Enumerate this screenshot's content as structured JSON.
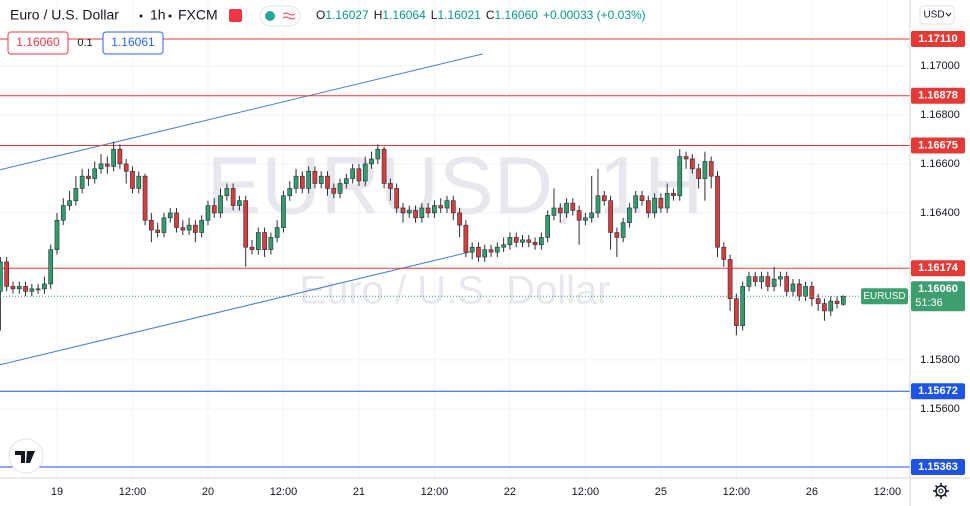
{
  "header": {
    "symbol": "Euro / U.S. Dollar",
    "interval": "1h",
    "exchange": "FXCM",
    "ohlc": [
      {
        "k": "O",
        "v": "1.16027"
      },
      {
        "k": "H",
        "v": "1.16064"
      },
      {
        "k": "L",
        "v": "1.16021"
      },
      {
        "k": "C",
        "v": "1.16060"
      }
    ],
    "change": "+0.00033 (+0.03%)",
    "sell": "1.16060",
    "spread": "0.1",
    "buy": "1.16061",
    "currency": "USD"
  },
  "chart_data": {
    "type": "candlestick",
    "watermark": "EURUSD, 1H",
    "watermark_sub": "Euro / U.S. Dollar",
    "up_color": "#2f9e6c",
    "down_color": "#d83c3c",
    "grid": true,
    "open": [
      1.1608,
      1.162,
      1.161,
      1.1609,
      1.161,
      1.1608,
      1.1609,
      1.1609,
      1.1611,
      1.1625,
      1.1637,
      1.1643,
      1.1645,
      1.165,
      1.1655,
      1.1654,
      1.1658,
      1.166,
      1.1659,
      1.1666,
      1.166,
      1.1657,
      1.165,
      1.1655,
      1.1637,
      1.1633,
      1.1632,
      1.1638,
      1.164,
      1.1634,
      1.1633,
      1.1635,
      1.1632,
      1.1637,
      1.1643,
      1.164,
      1.1647,
      1.165,
      1.1643,
      1.1645,
      1.1626,
      1.1625,
      1.1632,
      1.1625,
      1.163,
      1.1634,
      1.1647,
      1.165,
      1.1655,
      1.165,
      1.1657,
      1.1652,
      1.1655,
      1.165,
      1.1648,
      1.1652,
      1.1654,
      1.1658,
      1.1653,
      1.166,
      1.1662,
      1.1666,
      1.1652,
      1.165,
      1.1642,
      1.164,
      1.1641,
      1.1638,
      1.1642,
      1.164,
      1.1643,
      1.1642,
      1.1645,
      1.164,
      1.1635,
      1.1624,
      1.1626,
      1.1622,
      1.1625,
      1.1624,
      1.1626,
      1.1627,
      1.163,
      1.1628,
      1.1629,
      1.1628,
      1.1627,
      1.163,
      1.1639,
      1.1642,
      1.164,
      1.1644,
      1.1641,
      1.1637,
      1.1638,
      1.164,
      1.1647,
      1.1645,
      1.1632,
      1.163,
      1.1636,
      1.1642,
      1.1647,
      1.1645,
      1.164,
      1.1646,
      1.1642,
      1.1648,
      1.1647,
      1.1663,
      1.1662,
      1.1658,
      1.1654,
      1.1661,
      1.1655,
      1.1626,
      1.1621,
      1.1605,
      1.1594,
      1.161,
      1.1614,
      1.1612,
      1.1614,
      1.161,
      1.1613,
      1.1614,
      1.1608,
      1.1611,
      1.1606,
      1.161,
      1.1605,
      1.1603,
      1.16,
      1.1604,
      1.16027
    ],
    "high": [
      1.1622,
      1.1622,
      1.1612,
      1.1612,
      1.1612,
      1.1611,
      1.1611,
      1.1614,
      1.1627,
      1.164,
      1.1646,
      1.1649,
      1.1655,
      1.1658,
      1.1658,
      1.1661,
      1.1664,
      1.1663,
      1.1669,
      1.1668,
      1.1662,
      1.1659,
      1.1657,
      1.1656,
      1.164,
      1.1636,
      1.164,
      1.1642,
      1.1642,
      1.1637,
      1.1638,
      1.1637,
      1.1639,
      1.1645,
      1.1646,
      1.165,
      1.1652,
      1.1652,
      1.1647,
      1.1647,
      1.1629,
      1.1634,
      1.1634,
      1.1632,
      1.1637,
      1.1649,
      1.1653,
      1.1658,
      1.1657,
      1.1659,
      1.1659,
      1.1657,
      1.1657,
      1.1652,
      1.1654,
      1.1656,
      1.166,
      1.166,
      1.1663,
      1.1665,
      1.1668,
      1.1667,
      1.1654,
      1.1652,
      1.1644,
      1.1643,
      1.1643,
      1.1644,
      1.1644,
      1.1645,
      1.1646,
      1.1647,
      1.1647,
      1.1642,
      1.1637,
      1.1628,
      1.1628,
      1.1627,
      1.1627,
      1.1628,
      1.163,
      1.1632,
      1.1632,
      1.1631,
      1.1631,
      1.163,
      1.1632,
      1.1641,
      1.165,
      1.1644,
      1.1646,
      1.1646,
      1.1643,
      1.164,
      1.1655,
      1.1658,
      1.1649,
      1.1647,
      1.1634,
      1.1638,
      1.1644,
      1.1649,
      1.1649,
      1.1647,
      1.1648,
      1.1648,
      1.1652,
      1.165,
      1.1666,
      1.1665,
      1.1664,
      1.166,
      1.1665,
      1.1663,
      1.1657,
      1.1628,
      1.1623,
      1.1607,
      1.1612,
      1.1616,
      1.1616,
      1.1616,
      1.1616,
      1.1618,
      1.1616,
      1.1616,
      1.1613,
      1.1613,
      1.1612,
      1.1612,
      1.1607,
      1.1605,
      1.1606,
      1.1606,
      1.16064
    ],
    "low": [
      1.1592,
      1.1608,
      1.1607,
      1.1607,
      1.1606,
      1.1606,
      1.1607,
      1.1607,
      1.1609,
      1.1623,
      1.1635,
      1.1641,
      1.1643,
      1.1648,
      1.1651,
      1.1652,
      1.1656,
      1.1656,
      1.1657,
      1.1658,
      1.1652,
      1.1648,
      1.1648,
      1.1635,
      1.1628,
      1.163,
      1.163,
      1.1636,
      1.1632,
      1.1631,
      1.1631,
      1.1628,
      1.163,
      1.1635,
      1.1638,
      1.1638,
      1.1645,
      1.1641,
      1.1641,
      1.1618,
      1.1623,
      1.1623,
      1.1622,
      1.1623,
      1.1628,
      1.1632,
      1.1645,
      1.1648,
      1.1648,
      1.1648,
      1.165,
      1.165,
      1.1647,
      1.1646,
      1.1646,
      1.165,
      1.1652,
      1.1651,
      1.1651,
      1.1658,
      1.166,
      1.165,
      1.1645,
      1.164,
      1.1636,
      1.1638,
      1.1636,
      1.1636,
      1.1638,
      1.1638,
      1.164,
      1.164,
      1.1637,
      1.163,
      1.1622,
      1.1621,
      1.162,
      1.162,
      1.1622,
      1.1622,
      1.1624,
      1.1625,
      1.1626,
      1.1626,
      1.1626,
      1.1625,
      1.1625,
      1.1628,
      1.1637,
      1.1636,
      1.1638,
      1.1639,
      1.1627,
      1.1635,
      1.1636,
      1.1638,
      1.1643,
      1.1625,
      1.1622,
      1.1628,
      1.1634,
      1.164,
      1.1643,
      1.1638,
      1.1638,
      1.164,
      1.164,
      1.1645,
      1.1645,
      1.1658,
      1.1656,
      1.165,
      1.1645,
      1.165,
      1.1622,
      1.1618,
      1.16,
      1.159,
      1.1592,
      1.1608,
      1.161,
      1.1609,
      1.1608,
      1.1608,
      1.161,
      1.1606,
      1.1606,
      1.1604,
      1.1604,
      1.1602,
      1.16,
      1.1596,
      1.1598,
      1.1601,
      1.16021
    ],
    "close": [
      1.162,
      1.161,
      1.1609,
      1.161,
      1.1608,
      1.1609,
      1.1609,
      1.1611,
      1.1625,
      1.1637,
      1.1643,
      1.1645,
      1.165,
      1.1655,
      1.1654,
      1.1658,
      1.166,
      1.1659,
      1.1666,
      1.166,
      1.1657,
      1.165,
      1.1655,
      1.1637,
      1.1633,
      1.1632,
      1.1638,
      1.164,
      1.1634,
      1.1633,
      1.1635,
      1.1632,
      1.1637,
      1.1643,
      1.164,
      1.1647,
      1.165,
      1.1643,
      1.1645,
      1.1626,
      1.1625,
      1.1632,
      1.1625,
      1.163,
      1.1634,
      1.1647,
      1.165,
      1.1655,
      1.165,
      1.1657,
      1.1652,
      1.1655,
      1.165,
      1.1648,
      1.1652,
      1.1654,
      1.1658,
      1.1653,
      1.166,
      1.1662,
      1.1666,
      1.1652,
      1.165,
      1.1642,
      1.164,
      1.1641,
      1.1638,
      1.1642,
      1.164,
      1.1643,
      1.1642,
      1.1645,
      1.164,
      1.1635,
      1.1624,
      1.1626,
      1.1622,
      1.1625,
      1.1624,
      1.1626,
      1.1627,
      1.163,
      1.1628,
      1.1629,
      1.1628,
      1.1627,
      1.163,
      1.1639,
      1.1642,
      1.164,
      1.1644,
      1.1641,
      1.1637,
      1.1638,
      1.164,
      1.1647,
      1.1645,
      1.1632,
      1.163,
      1.1636,
      1.1642,
      1.1647,
      1.1645,
      1.164,
      1.1646,
      1.1642,
      1.1648,
      1.1647,
      1.1663,
      1.1662,
      1.1658,
      1.1654,
      1.1661,
      1.1655,
      1.1626,
      1.1621,
      1.1605,
      1.1594,
      1.161,
      1.1614,
      1.1612,
      1.1614,
      1.161,
      1.1613,
      1.1614,
      1.1608,
      1.1611,
      1.1606,
      1.161,
      1.1605,
      1.1603,
      1.16,
      1.1604,
      1.1603,
      1.1606
    ],
    "xlim": [
      -0.06,
      144.6
    ],
    "ylim": [
      1.15318,
      1.17269
    ],
    "xticks": [
      {
        "value": 9,
        "label": "19"
      },
      {
        "value": 21,
        "label": "12:00"
      },
      {
        "value": 33,
        "label": "20"
      },
      {
        "value": 45,
        "label": "12:00"
      },
      {
        "value": 57,
        "label": "21"
      },
      {
        "value": 69,
        "label": "12:00"
      },
      {
        "value": 81,
        "label": "22"
      },
      {
        "value": 93,
        "label": "12:00"
      },
      {
        "value": 105,
        "label": "25"
      },
      {
        "value": 117,
        "label": "12:00"
      },
      {
        "value": 129,
        "label": "26"
      },
      {
        "value": 141,
        "label": "12:00"
      }
    ],
    "yticks": [
      {
        "value": 1.17,
        "label": "1.17000"
      },
      {
        "value": 1.168,
        "label": "1.16800"
      },
      {
        "value": 1.166,
        "label": "1.16600"
      },
      {
        "value": 1.164,
        "label": "1.16400"
      },
      {
        "value": 1.158,
        "label": "1.15800"
      },
      {
        "value": 1.156,
        "label": "1.15600"
      }
    ],
    "hlines": [
      {
        "value": 1.1711,
        "label": "1.17110",
        "color": "#e53935"
      },
      {
        "value": 1.16878,
        "label": "1.16878",
        "color": "#e53935"
      },
      {
        "value": 1.16675,
        "label": "1.16675",
        "color": "#e53935"
      },
      {
        "value": 1.16174,
        "label": "1.16174",
        "color": "#e53935"
      },
      {
        "value": 1.15672,
        "label": "1.15672",
        "color": "#1e53e5"
      },
      {
        "value": 1.15363,
        "label": "1.15363",
        "color": "#1e53e5"
      }
    ],
    "trendlines": [
      {
        "x": [
          -0.06,
          76.7
        ],
        "y": [
          1.16576,
          1.17049
        ],
        "color": "#4a7fd4"
      },
      {
        "x": [
          -0.06,
          74.7
        ],
        "y": [
          1.1578,
          1.16241
        ],
        "color": "#4a7fd4"
      }
    ],
    "price_label": {
      "symbol": "EURUSD",
      "price": "1.16060",
      "countdown": "51:36",
      "color": "#3d9e70"
    }
  }
}
